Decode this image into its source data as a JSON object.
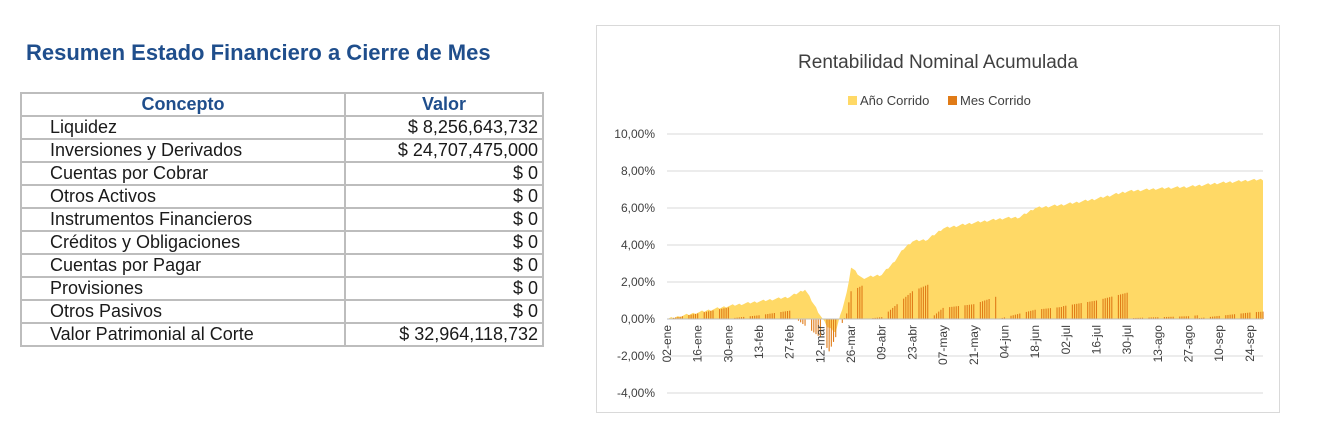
{
  "summary": {
    "title": "Resumen Estado Financiero a Cierre de Mes",
    "headers": {
      "concept": "Concepto",
      "value": "Valor"
    },
    "rows": [
      {
        "label": "Liquidez",
        "value": "$ 8,256,643,732"
      },
      {
        "label": "Inversiones y Derivados",
        "value": "$ 24,707,475,000"
      },
      {
        "label": "Cuentas por Cobrar",
        "value": "$ 0"
      },
      {
        "label": "Otros Activos",
        "value": "$ 0"
      },
      {
        "label": "Instrumentos Financieros",
        "value": "$ 0"
      },
      {
        "label": "Créditos y Obligaciones",
        "value": "$ 0"
      },
      {
        "label": "Cuentas por Pagar",
        "value": "$ 0"
      },
      {
        "label": "Provisiones",
        "value": "$ 0"
      },
      {
        "label": "Otros Pasivos",
        "value": "$ 0"
      },
      {
        "label": "Valor Patrimonial al Corte",
        "value": "$ 32,964,118,732"
      }
    ]
  },
  "chart_data": {
    "type": "area",
    "title": "Rentabilidad Nominal Acumulada",
    "legend_position": "top",
    "grid": true,
    "ylim": [
      -4,
      10
    ],
    "y_ticks": [
      "10,00%",
      "8,00%",
      "6,00%",
      "4,00%",
      "2,00%",
      "0,00%",
      "-2,00%",
      "-4,00%"
    ],
    "y_tick_values": [
      10,
      8,
      6,
      4,
      2,
      0,
      -2,
      -4
    ],
    "x_tick_labels": [
      "02-ene",
      "16-ene",
      "30-ene",
      "13-feb",
      "27-feb",
      "12-mar",
      "26-mar",
      "09-abr",
      "23-abr",
      "07-may",
      "21-may",
      "04-jun",
      "18-jun",
      "02-jul",
      "16-jul",
      "30-jul",
      "13-ago",
      "27-ago",
      "10-sep",
      "24-sep"
    ],
    "series": [
      {
        "name": "Año Corrido",
        "color": "#ffd966",
        "style": "area",
        "points": [
          [
            "02-ene",
            0.0
          ],
          [
            "16-ene",
            0.35
          ],
          [
            "30-ene",
            0.7
          ],
          [
            "13-feb",
            0.95
          ],
          [
            "27-feb",
            1.2
          ],
          [
            "05-mar",
            1.6
          ],
          [
            "10-mar",
            0.6
          ],
          [
            "15-mar",
            -0.4
          ],
          [
            "19-mar",
            -0.7
          ],
          [
            "24-mar",
            1.4
          ],
          [
            "26-mar",
            2.8
          ],
          [
            "31-mar",
            2.2
          ],
          [
            "09-abr",
            2.4
          ],
          [
            "14-abr",
            3.0
          ],
          [
            "19-abr",
            3.8
          ],
          [
            "23-abr",
            4.2
          ],
          [
            "30-abr",
            4.3
          ],
          [
            "07-may",
            4.9
          ],
          [
            "21-may",
            5.2
          ],
          [
            "04-jun",
            5.45
          ],
          [
            "11-jun",
            5.5
          ],
          [
            "18-jun",
            6.0
          ],
          [
            "02-jul",
            6.2
          ],
          [
            "16-jul",
            6.5
          ],
          [
            "30-jul",
            6.9
          ],
          [
            "13-ago",
            7.05
          ],
          [
            "27-ago",
            7.15
          ],
          [
            "10-sep",
            7.35
          ],
          [
            "24-sep",
            7.5
          ],
          [
            "30-sep",
            7.55
          ]
        ]
      },
      {
        "name": "Mes Corrido",
        "color": "#e07b17",
        "style": "bars",
        "points": [
          [
            "02-ene",
            0.0
          ],
          [
            "16-ene",
            0.3
          ],
          [
            "31-ene",
            0.65
          ],
          [
            "01-feb",
            0.05
          ],
          [
            "13-feb",
            0.2
          ],
          [
            "27-feb",
            0.45
          ],
          [
            "29-feb",
            0.5
          ],
          [
            "01-mar",
            0.0
          ],
          [
            "12-mar",
            -1.0
          ],
          [
            "16-mar",
            -1.75
          ],
          [
            "24-mar",
            0.3
          ],
          [
            "26-mar",
            1.5
          ],
          [
            "31-mar",
            1.8
          ],
          [
            "01-abr",
            0.0
          ],
          [
            "09-abr",
            0.1
          ],
          [
            "23-abr",
            1.5
          ],
          [
            "30-abr",
            1.85
          ],
          [
            "01-may",
            0.0
          ],
          [
            "07-may",
            0.6
          ],
          [
            "21-may",
            0.8
          ],
          [
            "31-may",
            1.2
          ],
          [
            "01-jun",
            0.0
          ],
          [
            "18-jun",
            0.5
          ],
          [
            "30-jun",
            0.65
          ],
          [
            "01-jul",
            0.7
          ],
          [
            "16-jul",
            1.0
          ],
          [
            "31-jul",
            1.45
          ],
          [
            "01-ago",
            0.05
          ],
          [
            "27-ago",
            0.15
          ],
          [
            "31-ago",
            0.2
          ],
          [
            "01-sep",
            0.05
          ],
          [
            "24-sep",
            0.35
          ],
          [
            "30-sep",
            0.4
          ]
        ]
      }
    ]
  }
}
